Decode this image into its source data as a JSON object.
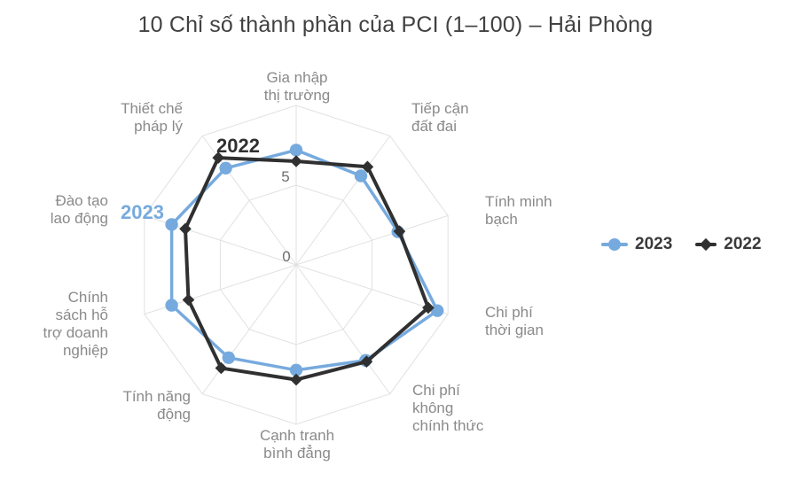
{
  "title": "10 Chỉ số thành phần của PCI (1–100) – Hải Phòng",
  "colors": {
    "series_2023": "#76aade",
    "series_2022": "#303030",
    "grid": "#e1e1e1",
    "title_text": "#414141",
    "axis_label": "#8a8a8a",
    "tick_label": "#6f6f6f",
    "legend_text": "#3a3a3a",
    "background": "#ffffff"
  },
  "annotations": {
    "series_2023": "2023",
    "series_2022": "2022"
  },
  "ticks": {
    "zero": "0",
    "five": "5"
  },
  "legend": {
    "items": [
      {
        "label": "2023",
        "marker": "circle"
      },
      {
        "label": "2022",
        "marker": "diamond"
      }
    ]
  },
  "chart_data": {
    "type": "radar",
    "scale_min": 0,
    "scale_max": 10,
    "tick_values": [
      0,
      5
    ],
    "grid_rings": [
      5,
      10
    ],
    "legend_position": "right",
    "categories": [
      "Gia nhập\nthị trường",
      "Tiếp cận\nđất đai",
      "Tính minh\nbạch",
      "Chi phí\nthời gian",
      "Chi phí\nkhông\nchính thức",
      "Cạnh tranh\nbình đẳng",
      "Tính năng\nđộng",
      "Chính\nsách hỗ\ntrợ doanh\nnghiệp",
      "Đào tạo\nlao động",
      "Thiết chế\npháp lý"
    ],
    "series": [
      {
        "name": "2023",
        "marker": "circle",
        "color": "#76aade",
        "values": [
          7.2,
          6.9,
          6.7,
          9.3,
          7.4,
          6.6,
          7.2,
          8.2,
          8.2,
          7.5
        ]
      },
      {
        "name": "2022",
        "marker": "diamond",
        "color": "#303030",
        "values": [
          6.5,
          7.6,
          6.8,
          8.7,
          7.5,
          7.2,
          8.0,
          7.1,
          7.3,
          8.3
        ]
      }
    ]
  }
}
